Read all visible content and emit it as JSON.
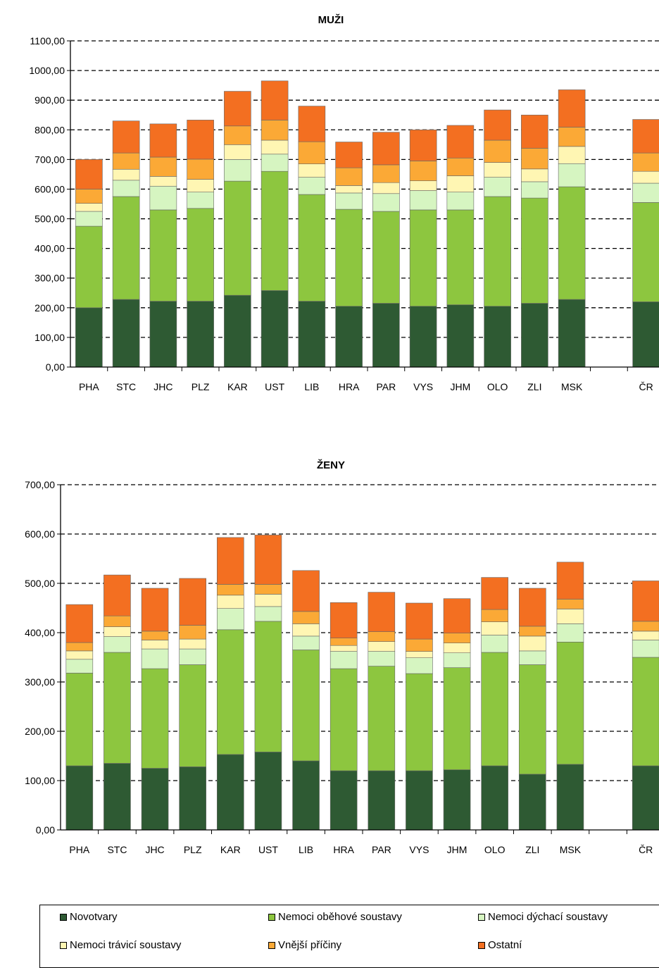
{
  "chart_data": [
    {
      "type": "bar",
      "stacked": true,
      "title": "MUŽI",
      "categories": [
        "PHA",
        "STC",
        "JHC",
        "PLZ",
        "KAR",
        "UST",
        "LIB",
        "HRA",
        "PAR",
        "VYS",
        "JHM",
        "OLO",
        "ZLI",
        "MSK",
        "",
        "ČR"
      ],
      "ylim": [
        0,
        1100
      ],
      "yticks": [
        "0,00",
        "100,00",
        "200,00",
        "300,00",
        "400,00",
        "500,00",
        "600,00",
        "700,00",
        "800,00",
        "900,00",
        "1000,00",
        "1100,00"
      ],
      "grid": "dashed horizontal",
      "series": [
        {
          "name": "Novotvary",
          "color": "#2e5a33",
          "values": [
            200,
            228,
            222,
            222,
            242,
            258,
            222,
            205,
            215,
            205,
            210,
            205,
            215,
            228,
            null,
            220
          ]
        },
        {
          "name": "Nemoci oběhové soustavy",
          "color": "#8dc63f",
          "values": [
            275,
            347,
            308,
            313,
            385,
            402,
            360,
            327,
            310,
            325,
            320,
            370,
            355,
            380,
            null,
            335
          ]
        },
        {
          "name": "Nemoci dýchací soustavy",
          "color": "#d6f5c1",
          "values": [
            50,
            55,
            80,
            55,
            73,
            58,
            58,
            55,
            60,
            65,
            60,
            65,
            55,
            78,
            null,
            65
          ]
        },
        {
          "name": "Nemoci trávicí soustavy",
          "color": "#fff6b3",
          "values": [
            27,
            37,
            33,
            43,
            50,
            47,
            45,
            25,
            37,
            33,
            55,
            50,
            43,
            58,
            null,
            40
          ]
        },
        {
          "name": "Vnější příčiny",
          "color": "#fba936",
          "values": [
            48,
            55,
            65,
            68,
            63,
            68,
            75,
            60,
            60,
            67,
            60,
            75,
            70,
            65,
            null,
            62
          ]
        },
        {
          "name": "Ostatní",
          "color": "#f36f21",
          "values": [
            100,
            108,
            112,
            132,
            117,
            132,
            120,
            87,
            110,
            105,
            110,
            102,
            112,
            126,
            null,
            113
          ]
        }
      ]
    },
    {
      "type": "bar",
      "stacked": true,
      "title": "ŽENY",
      "categories": [
        "PHA",
        "STC",
        "JHC",
        "PLZ",
        "KAR",
        "UST",
        "LIB",
        "HRA",
        "PAR",
        "VYS",
        "JHM",
        "OLO",
        "ZLI",
        "MSK",
        "",
        "ČR"
      ],
      "ylim": [
        0,
        700
      ],
      "yticks": [
        "0,00",
        "100,00",
        "200,00",
        "300,00",
        "400,00",
        "500,00",
        "600,00",
        "700,00"
      ],
      "grid": "dashed horizontal",
      "series": [
        {
          "name": "Novotvary",
          "color": "#2e5a33",
          "values": [
            130,
            135,
            125,
            128,
            153,
            158,
            140,
            120,
            120,
            120,
            122,
            130,
            113,
            133,
            null,
            130
          ]
        },
        {
          "name": "Nemoci oběhové soustavy",
          "color": "#8dc63f",
          "values": [
            188,
            225,
            202,
            207,
            253,
            265,
            225,
            207,
            212,
            197,
            207,
            230,
            222,
            248,
            null,
            220
          ]
        },
        {
          "name": "Nemoci dýchací soustavy",
          "color": "#d6f5c1",
          "values": [
            28,
            32,
            40,
            32,
            43,
            30,
            28,
            35,
            30,
            32,
            30,
            35,
            28,
            37,
            null,
            35
          ]
        },
        {
          "name": "Nemoci trávicí soustavy",
          "color": "#fff6b3",
          "values": [
            17,
            20,
            18,
            20,
            27,
            25,
            25,
            12,
            20,
            13,
            20,
            27,
            30,
            30,
            null,
            18
          ]
        },
        {
          "name": "Vnější příčiny",
          "color": "#fba936",
          "values": [
            17,
            22,
            18,
            28,
            22,
            20,
            25,
            15,
            20,
            25,
            20,
            25,
            20,
            20,
            null,
            20
          ]
        },
        {
          "name": "Ostatní",
          "color": "#f36f21",
          "values": [
            77,
            83,
            87,
            95,
            95,
            100,
            83,
            72,
            80,
            73,
            70,
            65,
            77,
            75,
            null,
            82
          ]
        }
      ]
    }
  ],
  "legend": {
    "items": [
      {
        "label": "Novotvary",
        "color": "#2e5a33"
      },
      {
        "label": "Nemoci oběhové soustavy",
        "color": "#8dc63f"
      },
      {
        "label": "Nemoci dýchací soustavy",
        "color": "#d6f5c1"
      },
      {
        "label": "Nemoci trávicí soustavy",
        "color": "#fff6b3"
      },
      {
        "label": "Vnější příčiny",
        "color": "#fba936"
      },
      {
        "label": "Ostatní",
        "color": "#f36f21"
      }
    ]
  }
}
